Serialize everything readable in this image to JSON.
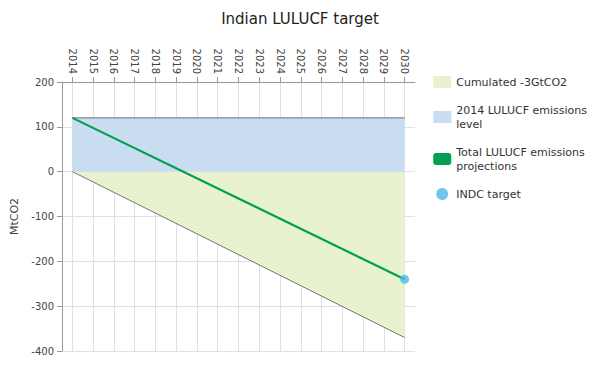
{
  "chart_data": {
    "type": "line",
    "title": "Indian LULUCF target",
    "ylabel": "MtCO2",
    "xlim": [
      2013.5,
      2030.5
    ],
    "xticks": [
      2014,
      2015,
      2016,
      2017,
      2018,
      2019,
      2020,
      2021,
      2022,
      2023,
      2024,
      2025,
      2026,
      2027,
      2028,
      2029,
      2030
    ],
    "ylim": [
      -400,
      200
    ],
    "yticks": [
      -400,
      -300,
      -200,
      -100,
      0,
      100,
      200
    ],
    "grid": true,
    "legend": "right",
    "series": [
      {
        "name": "Cumulated -3GtCO2",
        "type": "area",
        "color": "#e8f2d0",
        "x": [
          2014,
          2030
        ],
        "values": [
          0,
          -370
        ]
      },
      {
        "name": "2014 LULUCF emissions\nlevel",
        "type": "area",
        "color": "#c8ddf0",
        "x": [
          2014,
          2030
        ],
        "values": [
          120,
          120
        ]
      },
      {
        "name": "Total LULUCF emissions\nprojections",
        "type": "line",
        "color": "#00a050",
        "x": [
          2014,
          2030
        ],
        "values": [
          120,
          -240
        ]
      },
      {
        "name": "INDC target",
        "type": "scatter",
        "color": "#4db8e8",
        "x": [
          2030
        ],
        "values": [
          -240
        ]
      }
    ]
  }
}
